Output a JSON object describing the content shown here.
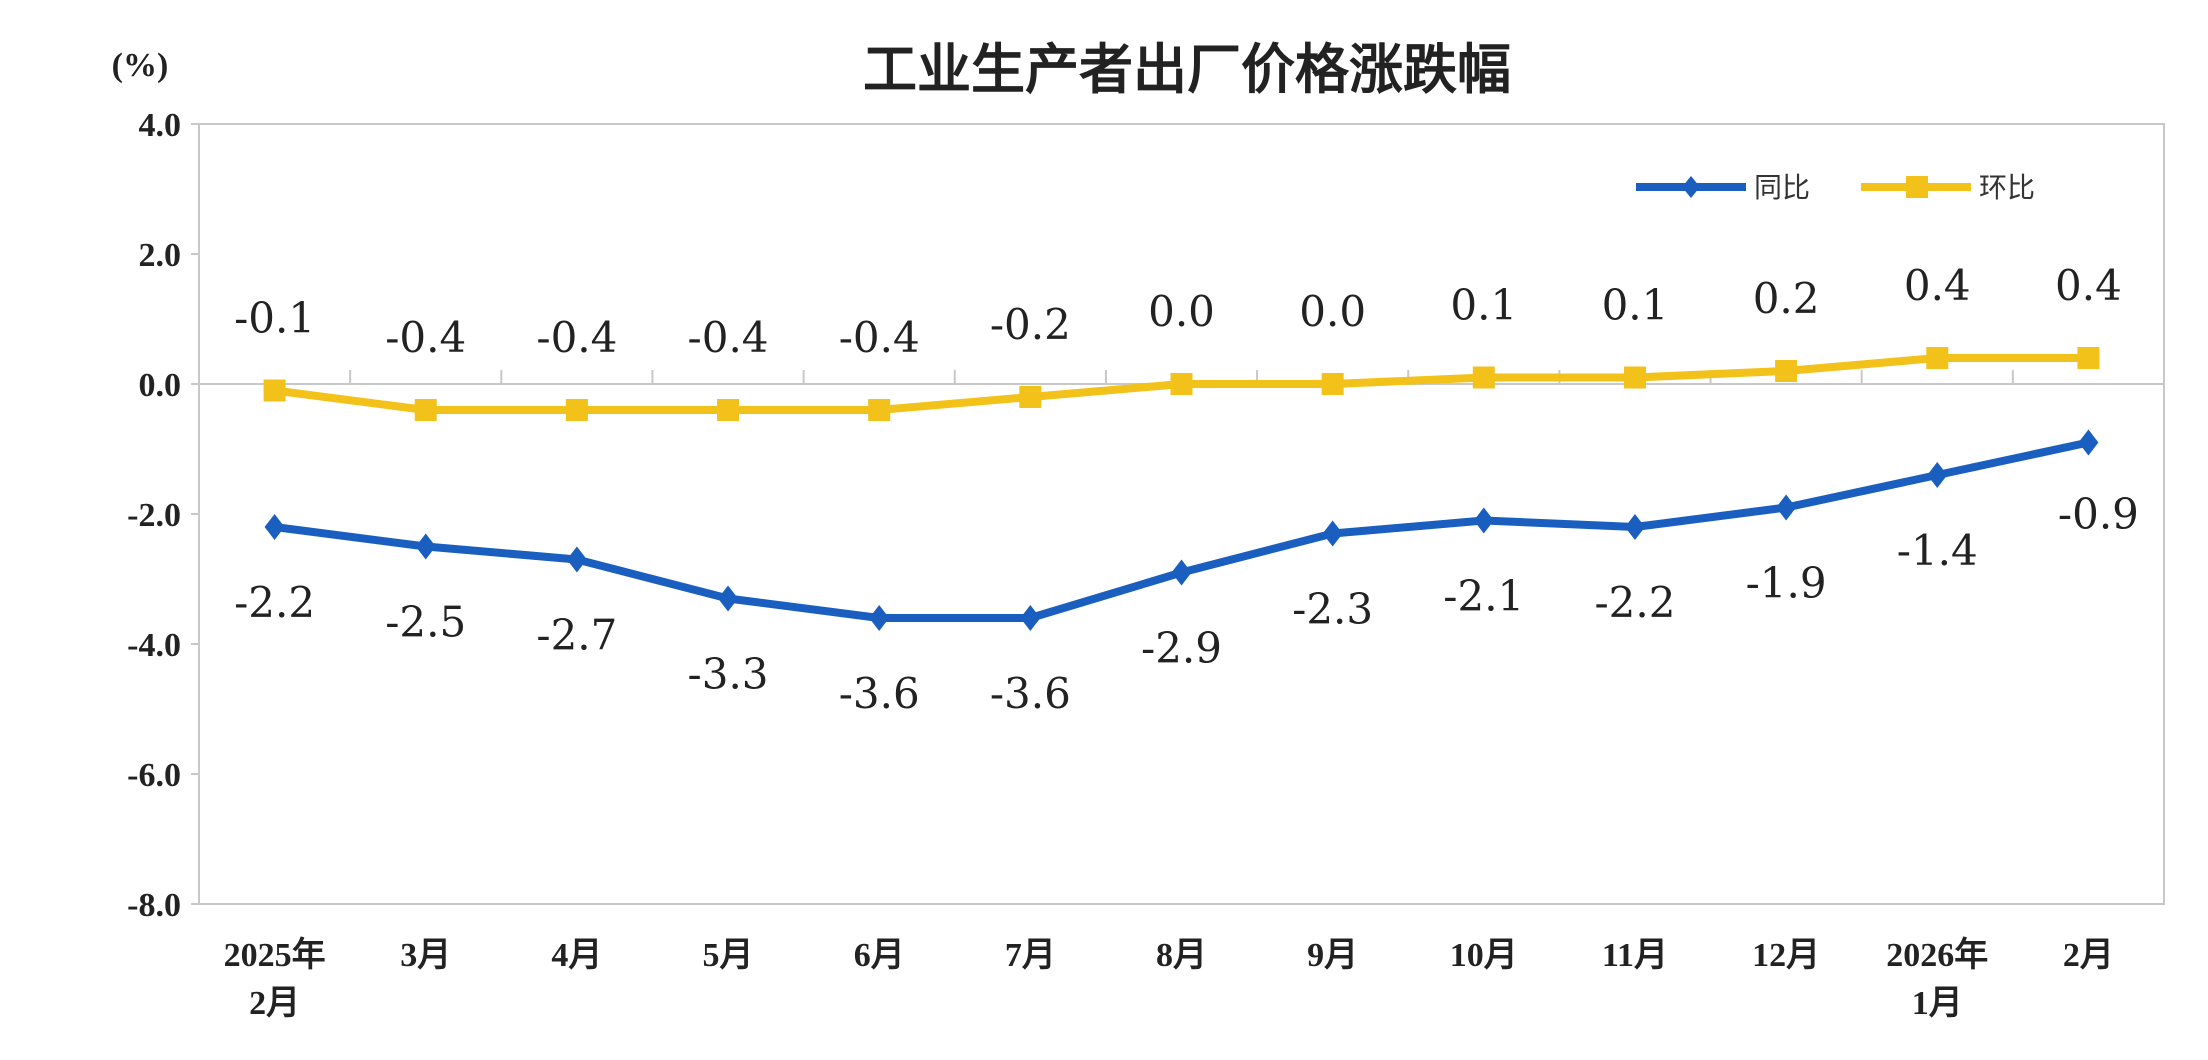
{
  "chart_data": {
    "type": "line",
    "title": "工业生产者出厂价格涨跌幅",
    "ylabel": "(%)",
    "ylim": [
      -8.0,
      4.0
    ],
    "yticks": [
      "4.0",
      "2.0",
      "0.0",
      "-2.0",
      "-4.0",
      "-6.0",
      "-8.0"
    ],
    "ytick_values": [
      4,
      2,
      0,
      -2,
      -4,
      -6,
      -8
    ],
    "categories": [
      [
        "2025年",
        "2月"
      ],
      [
        "3月"
      ],
      [
        "4月"
      ],
      [
        "5月"
      ],
      [
        "6月"
      ],
      [
        "7月"
      ],
      [
        "8月"
      ],
      [
        "9月"
      ],
      [
        "10月"
      ],
      [
        "11月"
      ],
      [
        "12月"
      ],
      [
        "2026年",
        "1月"
      ],
      [
        "2月"
      ]
    ],
    "grid": false,
    "legend_position": "top-right",
    "series": [
      {
        "name": "同比",
        "color": "#1a5fc0",
        "marker": "diamond",
        "values": [
          -2.2,
          -2.5,
          -2.7,
          -3.3,
          -3.6,
          -3.6,
          -2.9,
          -2.3,
          -2.1,
          -2.2,
          -1.9,
          -1.4,
          -0.9
        ],
        "labels": [
          "-2.2",
          "-2.5",
          "-2.7",
          "-3.3",
          "-3.6",
          "-3.6",
          "-2.9",
          "-2.3",
          "-2.1",
          "-2.2",
          "-1.9",
          "-1.4",
          "-0.9"
        ]
      },
      {
        "name": "环比",
        "color": "#f2c21b",
        "marker": "square",
        "values": [
          -0.1,
          -0.4,
          -0.4,
          -0.4,
          -0.4,
          -0.2,
          0.0,
          0.0,
          0.1,
          0.1,
          0.2,
          0.4,
          0.4
        ],
        "labels": [
          "-0.1",
          "-0.4",
          "-0.4",
          "-0.4",
          "-0.4",
          "-0.2",
          "0.0",
          "0.0",
          "0.1",
          "0.1",
          "0.2",
          "0.4",
          "0.4"
        ]
      }
    ]
  }
}
